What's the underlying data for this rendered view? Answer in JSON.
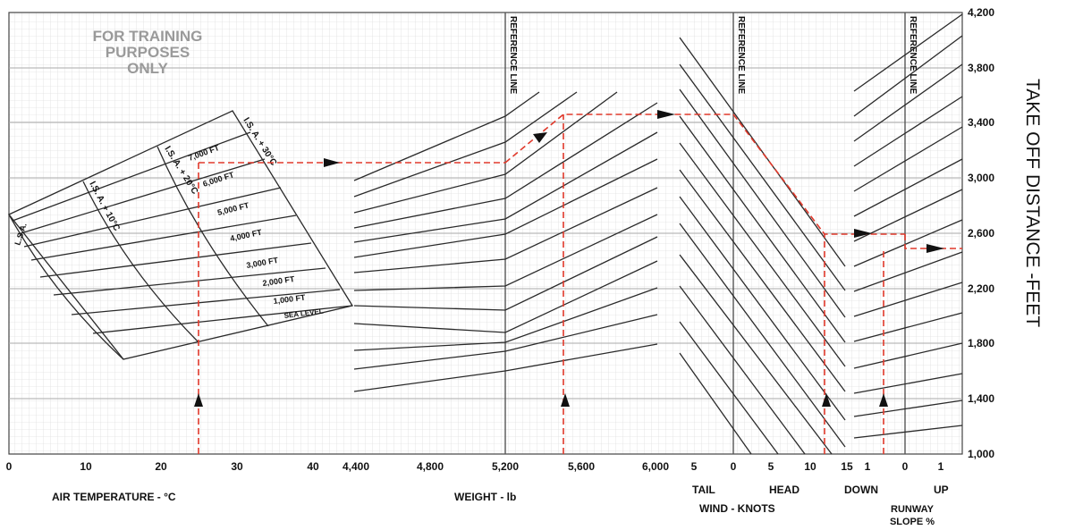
{
  "chart_data": {
    "type": "line",
    "title": "TAKE OFF DISTANCE -FEET",
    "watermark": [
      "FOR TRAINING",
      "PURPOSES",
      "ONLY"
    ],
    "reference_line_label": "REFERENCE LINE",
    "y_axis": {
      "label": "TAKE OFF DISTANCE -FEET",
      "ticks": [
        "4,200",
        "3,800",
        "3,400",
        "3,000",
        "2,600",
        "2,200",
        "1,800",
        "1,400",
        "1,000"
      ],
      "range": [
        1000,
        4200
      ]
    },
    "panels": {
      "temperature": {
        "label": "AIR TEMPERATURE -   °C",
        "ticks": [
          "0",
          "10",
          "20",
          "30",
          "40"
        ],
        "curve_labels": [
          "L.S.A.",
          "I.S. A. + 10°C",
          "I.S. A. + 20°C",
          "I.S. A. + 30°C"
        ],
        "altitude_labels": [
          "7,000 FT",
          "6,000 FT",
          "5,000 FT",
          "4,000 FT",
          "3,000 FT",
          "2,000 FT",
          "1,000 FT",
          "SEA LEVEL"
        ]
      },
      "weight": {
        "label": "WEIGHT - lb",
        "ticks": [
          "4,400",
          "4,800",
          "5,200",
          "5,600",
          "6,000"
        ],
        "reference": "5,200"
      },
      "wind": {
        "label": "WIND - KNOTS",
        "ticks": [
          "5",
          "0",
          "5",
          "10",
          "15"
        ],
        "sublabels": [
          "TAIL",
          "HEAD"
        ]
      },
      "slope": {
        "label": [
          "RUNWAY",
          "SLOPE %"
        ],
        "ticks": [
          "1",
          "0",
          "1"
        ],
        "sublabels": [
          "DOWN",
          "UP"
        ]
      }
    },
    "example": {
      "air_temperature_c": 25,
      "pressure_altitude_ft": 6000,
      "weight_lb": 5500,
      "wind_kt": 12,
      "runway_slope_percent": 0.5
    },
    "colors": {
      "grid": "#c8c8c8",
      "lines": "#2a2a2a",
      "example_path": "#e0392b"
    }
  }
}
